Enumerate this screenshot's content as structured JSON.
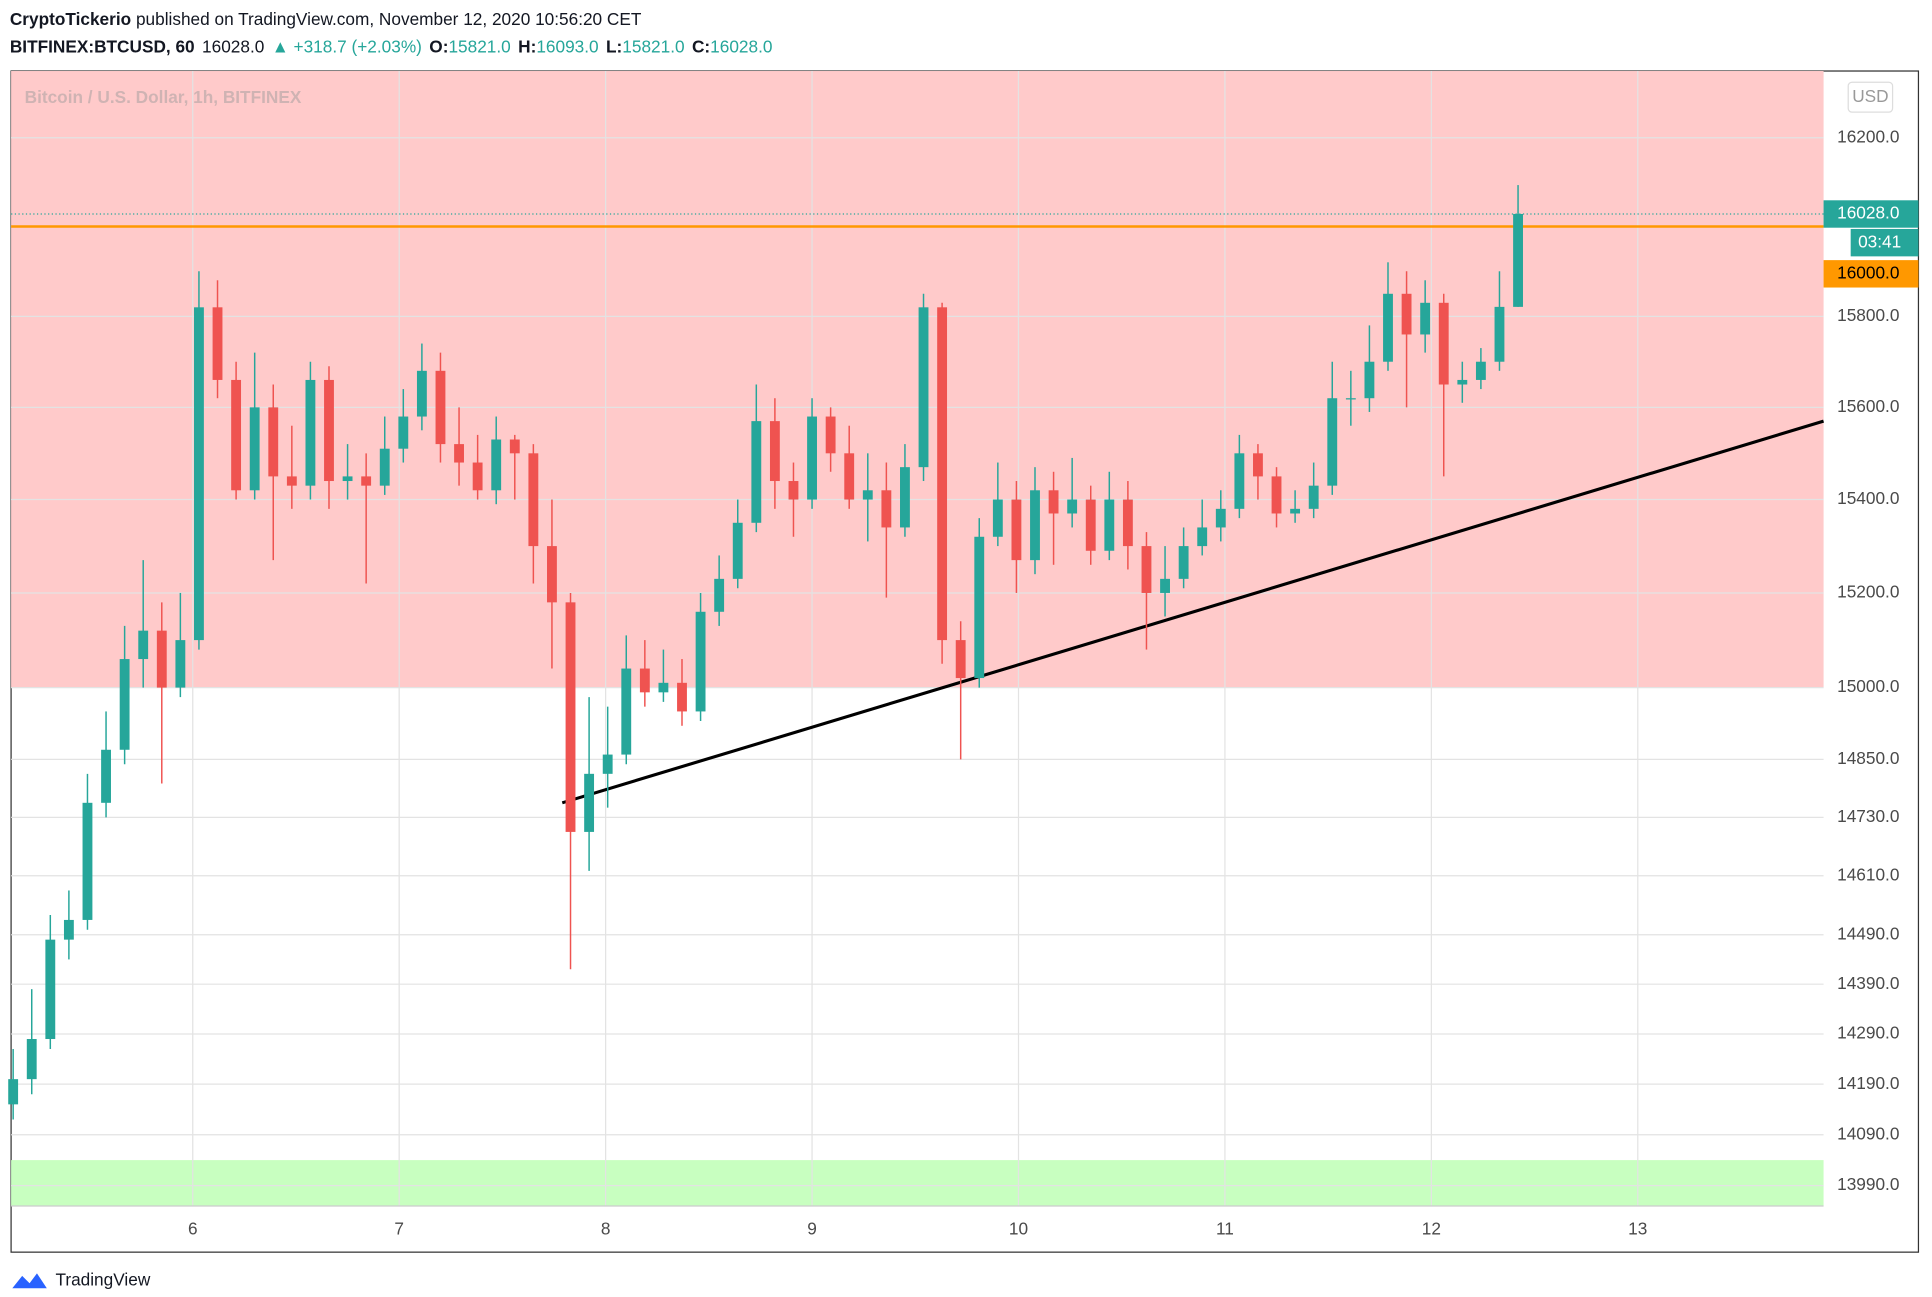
{
  "header": {
    "author": "CryptoTickerio",
    "published": " published on TradingView.com, November 12, 2020 10:56:20 CET",
    "symbol": "BITFINEX:BTCUSD, 60",
    "last": "16028.0",
    "change": "▲ +318.7 (+2.03%)",
    "ohlc": [
      {
        "label": "O:",
        "value": "15821.0"
      },
      {
        "label": "H:",
        "value": "16093.0"
      },
      {
        "label": "L:",
        "value": "15821.0"
      },
      {
        "label": "C:",
        "value": "16028.0"
      }
    ]
  },
  "chart_data": {
    "type": "candlestick",
    "title": "Bitcoin / U.S. Dollar, 1h, BITFINEX",
    "currency": "USD",
    "x": [
      5.13,
      5.22,
      5.31,
      5.4,
      5.49,
      5.58,
      5.67,
      5.76,
      5.85,
      5.94,
      6.03,
      6.12,
      6.21,
      6.3,
      6.39,
      6.48,
      6.57,
      6.66,
      6.75,
      6.84,
      6.93,
      7.02,
      7.11,
      7.2,
      7.29,
      7.38,
      7.47,
      7.56,
      7.65,
      7.74,
      7.83,
      7.92,
      8.01,
      8.1,
      8.19,
      8.28,
      8.37,
      8.46,
      8.55,
      8.64,
      8.73,
      8.82,
      8.91,
      9.0,
      9.09,
      9.18,
      9.27,
      9.36,
      9.45,
      9.54,
      9.63,
      9.72,
      9.81,
      9.9,
      9.99,
      10.08,
      10.17,
      10.26,
      10.35,
      10.44,
      10.53,
      10.62,
      10.71,
      10.8,
      10.89,
      10.98,
      11.07,
      11.16,
      11.25,
      11.34,
      11.43,
      11.52,
      11.61,
      11.7,
      11.79,
      11.88,
      11.97,
      12.06,
      12.15,
      12.24,
      12.33,
      12.42
    ],
    "open": [
      14150,
      14200,
      14280,
      14480,
      14520,
      14760,
      14870,
      15060,
      15120,
      15000,
      15100,
      15820,
      15660,
      15420,
      15600,
      15450,
      15430,
      15660,
      15440,
      15450,
      15430,
      15510,
      15580,
      15680,
      15520,
      15480,
      15420,
      15530,
      15500,
      15300,
      15180,
      14700,
      14820,
      14860,
      15040,
      14990,
      15010,
      14950,
      15160,
      15230,
      15350,
      15570,
      15440,
      15400,
      15580,
      15500,
      15400,
      15420,
      15340,
      15470,
      15820,
      15100,
      15020,
      15320,
      15400,
      15270,
      15420,
      15370,
      15400,
      15290,
      15400,
      15300,
      15200,
      15230,
      15300,
      15340,
      15380,
      15500,
      15450,
      15370,
      15380,
      15430,
      15620,
      15620,
      15700,
      15850,
      15760,
      15830,
      15650,
      15660,
      15700,
      15821
    ],
    "high": [
      14260,
      14380,
      14530,
      14580,
      14820,
      14950,
      15130,
      15270,
      15180,
      15200,
      15900,
      15880,
      15700,
      15720,
      15650,
      15560,
      15700,
      15690,
      15520,
      15500,
      15580,
      15640,
      15740,
      15720,
      15600,
      15540,
      15580,
      15540,
      15520,
      15400,
      15200,
      14980,
      14960,
      15110,
      15100,
      15080,
      15060,
      15200,
      15280,
      15400,
      15650,
      15620,
      15480,
      15620,
      15600,
      15560,
      15500,
      15480,
      15520,
      15850,
      15830,
      15140,
      15360,
      15480,
      15440,
      15470,
      15460,
      15490,
      15430,
      15460,
      15440,
      15330,
      15300,
      15340,
      15400,
      15420,
      15540,
      15520,
      15470,
      15420,
      15480,
      15700,
      15680,
      15780,
      15920,
      15900,
      15880,
      15850,
      15700,
      15730,
      15900,
      16093
    ],
    "low": [
      14120,
      14170,
      14260,
      14440,
      14500,
      14730,
      14840,
      15000,
      14800,
      14980,
      15080,
      15620,
      15400,
      15400,
      15270,
      15380,
      15400,
      15380,
      15400,
      15220,
      15410,
      15480,
      15550,
      15480,
      15430,
      15400,
      15390,
      15400,
      15220,
      15040,
      14420,
      14620,
      14750,
      14840,
      14960,
      14970,
      14920,
      14930,
      15130,
      15210,
      15330,
      15380,
      15320,
      15380,
      15460,
      15380,
      15310,
      15190,
      15320,
      15440,
      15050,
      14850,
      15000,
      15300,
      15200,
      15240,
      15260,
      15340,
      15260,
      15270,
      15250,
      15080,
      15150,
      15210,
      15280,
      15310,
      15360,
      15400,
      15340,
      15350,
      15360,
      15410,
      15560,
      15590,
      15680,
      15600,
      15720,
      15450,
      15610,
      15640,
      15680,
      15821
    ],
    "close": [
      14200,
      14280,
      14480,
      14520,
      14760,
      14870,
      15060,
      15120,
      15000,
      15100,
      15820,
      15660,
      15420,
      15600,
      15450,
      15430,
      15660,
      15440,
      15450,
      15430,
      15510,
      15580,
      15680,
      15520,
      15480,
      15420,
      15530,
      15500,
      15300,
      15180,
      14700,
      14820,
      14860,
      15040,
      14990,
      15010,
      14950,
      15160,
      15230,
      15350,
      15570,
      15440,
      15400,
      15580,
      15500,
      15400,
      15420,
      15340,
      15470,
      15820,
      15100,
      15020,
      15320,
      15400,
      15270,
      15420,
      15370,
      15400,
      15290,
      15400,
      15300,
      15200,
      15230,
      15300,
      15340,
      15380,
      15500,
      15450,
      15370,
      15380,
      15430,
      15620,
      15620,
      15700,
      15850,
      15760,
      15830,
      15650,
      15660,
      15700,
      15821,
      16028
    ],
    "up_color": "#26a69a",
    "down_color": "#ef5350",
    "log_scale": true,
    "grid": true,
    "xlim": [
      5.12,
      13.9
    ],
    "xticks": [
      6,
      7,
      8,
      9,
      10,
      11,
      12,
      13
    ],
    "ylim": [
      13950,
      16352
    ],
    "yticks": [
      {
        "value": 16200,
        "label": "16200.0"
      },
      {
        "value": 15800,
        "label": "15800.0"
      },
      {
        "value": 15600,
        "label": "15600.0"
      },
      {
        "value": 15400,
        "label": "15400.0"
      },
      {
        "value": 15200,
        "label": "15200.0"
      },
      {
        "value": 15000,
        "label": "15000.0"
      },
      {
        "value": 14850,
        "label": "14850.0"
      },
      {
        "value": 14730,
        "label": "14730.0"
      },
      {
        "value": 14610,
        "label": "14610.0"
      },
      {
        "value": 14490,
        "label": "14490.0"
      },
      {
        "value": 14390,
        "label": "14390.0"
      },
      {
        "value": 14290,
        "label": "14290.0"
      },
      {
        "value": 14190,
        "label": "14190.0"
      },
      {
        "value": 14090,
        "label": "14090.0"
      },
      {
        "value": 13990,
        "label": "13990.0"
      }
    ],
    "zones": [
      {
        "range": [
          15000,
          16352
        ],
        "color": "#ffcaca"
      },
      {
        "range": [
          13950,
          14040
        ],
        "color": "#c8ffc0"
      }
    ],
    "hline": {
      "value": 16000,
      "label": "16000.0",
      "color": "#ff9800"
    },
    "last_price": {
      "value": 16028,
      "label": "16028.0",
      "countdown": "03:41"
    },
    "trendline": {
      "x": [
        7.79,
        13.9
      ],
      "y": [
        14760,
        15570
      ],
      "color": "#000000"
    }
  },
  "footer": {
    "brand": "TradingView"
  }
}
